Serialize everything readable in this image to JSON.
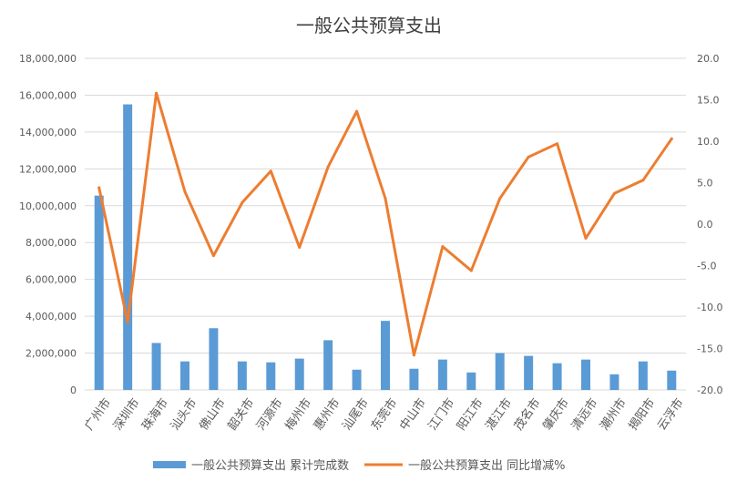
{
  "chart_data": {
    "type": "bar",
    "title": "一般公共预算支出",
    "categories": [
      "广州市",
      "深圳市",
      "珠海市",
      "汕头市",
      "佛山市",
      "韶关市",
      "河源市",
      "梅州市",
      "惠州市",
      "汕尾市",
      "东莞市",
      "中山市",
      "江门市",
      "阳江市",
      "湛江市",
      "茂名市",
      "肇庆市",
      "清远市",
      "潮州市",
      "揭阳市",
      "云浮市"
    ],
    "series": [
      {
        "name": "一般公共预算支出 累计完成数",
        "type": "bar",
        "axis": "left",
        "color": "#5B9BD5",
        "values": [
          10550000,
          15500000,
          2550000,
          1550000,
          3350000,
          1550000,
          1500000,
          1700000,
          2700000,
          1100000,
          3750000,
          1150000,
          1650000,
          950000,
          2000000,
          1850000,
          1450000,
          1650000,
          850000,
          1550000,
          1050000
        ]
      },
      {
        "name": "一般公共预算支出 同比增减%",
        "type": "line",
        "axis": "right",
        "color": "#ED7D31",
        "values": [
          4.4,
          -11.8,
          15.8,
          3.9,
          -3.8,
          2.6,
          6.4,
          -2.8,
          6.9,
          13.6,
          3.1,
          -15.8,
          -2.7,
          -5.6,
          3.1,
          8.1,
          9.7,
          -1.7,
          3.7,
          5.3,
          10.3
        ]
      }
    ],
    "y_left": {
      "range": [
        0,
        18000000
      ],
      "ticks": [
        "0",
        "2,000,000",
        "4,000,000",
        "6,000,000",
        "8,000,000",
        "10,000,000",
        "12,000,000",
        "14,000,000",
        "16,000,000",
        "18,000,000"
      ]
    },
    "y_right": {
      "range": [
        -20,
        20
      ],
      "ticks": [
        "-20.0",
        "-15.0",
        "-10.0",
        "-5.0",
        "0.0",
        "5.0",
        "10.0",
        "15.0",
        "20.0"
      ]
    },
    "xlabel": "",
    "ylabel": "",
    "grid": true,
    "legend_position": "bottom"
  }
}
